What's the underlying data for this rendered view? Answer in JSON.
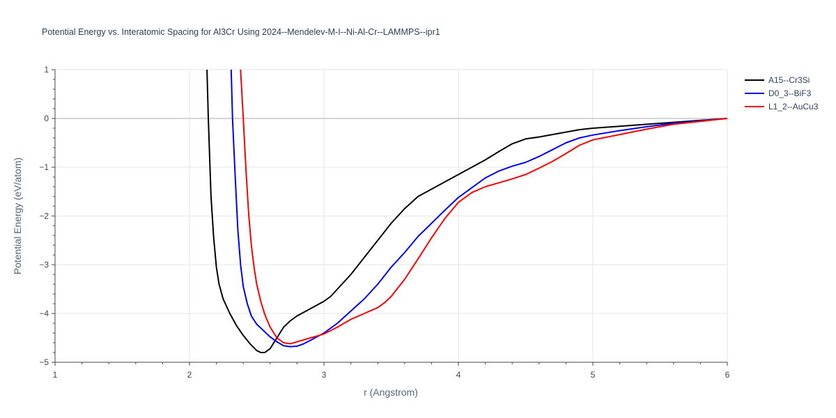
{
  "chart_data": {
    "type": "line",
    "title": "Potential Energy vs. Interatomic Spacing for Al3Cr Using 2024--Mendelev-M-I--Ni-Al-Cr--LAMMPS--ipr1",
    "xlabel": "r (Angstrom)",
    "ylabel": "Potential Energy (eV/atom)",
    "xlim": [
      1,
      6
    ],
    "ylim": [
      -5,
      1
    ],
    "xticks": [
      1,
      2,
      3,
      4,
      5,
      6
    ],
    "xtick_labels": [
      "1",
      "2",
      "3",
      "4",
      "5",
      "6"
    ],
    "yticks": [
      1,
      0,
      -1,
      -2,
      -3,
      -4,
      -5
    ],
    "ytick_labels": [
      "1",
      "0",
      "−1",
      "−2",
      "−3",
      "−4",
      "−5"
    ],
    "grid": true,
    "legend_position": "top-right",
    "series": [
      {
        "name": "A15--Cr3Si",
        "color": "#000000",
        "x": [
          2.13,
          2.14,
          2.16,
          2.18,
          2.2,
          2.22,
          2.25,
          2.3,
          2.35,
          2.4,
          2.45,
          2.5,
          2.53,
          2.56,
          2.6,
          2.65,
          2.7,
          2.75,
          2.8,
          2.9,
          3.0,
          3.05,
          3.1,
          3.2,
          3.3,
          3.4,
          3.5,
          3.6,
          3.7,
          3.8,
          3.9,
          4.0,
          4.1,
          4.2,
          4.3,
          4.4,
          4.5,
          4.6,
          4.7,
          4.8,
          4.9,
          5.0,
          5.2,
          5.4,
          5.6,
          5.8,
          6.0
        ],
        "y": [
          1.0,
          0.0,
          -1.6,
          -2.45,
          -3.05,
          -3.4,
          -3.7,
          -4.0,
          -4.25,
          -4.45,
          -4.62,
          -4.76,
          -4.8,
          -4.8,
          -4.72,
          -4.5,
          -4.28,
          -4.15,
          -4.05,
          -3.9,
          -3.75,
          -3.65,
          -3.5,
          -3.2,
          -2.85,
          -2.5,
          -2.15,
          -1.85,
          -1.6,
          -1.45,
          -1.3,
          -1.15,
          -1.0,
          -0.85,
          -0.68,
          -0.52,
          -0.42,
          -0.38,
          -0.33,
          -0.28,
          -0.23,
          -0.2,
          -0.16,
          -0.12,
          -0.08,
          -0.04,
          0.0
        ]
      },
      {
        "name": "D0_3--BiF3",
        "color": "#0000ff",
        "x": [
          2.31,
          2.32,
          2.34,
          2.36,
          2.38,
          2.4,
          2.43,
          2.46,
          2.5,
          2.55,
          2.6,
          2.65,
          2.7,
          2.75,
          2.8,
          2.85,
          2.9,
          3.0,
          3.1,
          3.2,
          3.3,
          3.4,
          3.5,
          3.6,
          3.7,
          3.8,
          3.9,
          4.0,
          4.1,
          4.2,
          4.3,
          4.4,
          4.5,
          4.6,
          4.7,
          4.8,
          4.9,
          5.0,
          5.2,
          5.4,
          5.6,
          5.8,
          6.0
        ],
        "y": [
          1.0,
          0.0,
          -1.2,
          -2.3,
          -3.0,
          -3.45,
          -3.8,
          -4.05,
          -4.22,
          -4.35,
          -4.48,
          -4.58,
          -4.66,
          -4.68,
          -4.67,
          -4.62,
          -4.55,
          -4.4,
          -4.2,
          -3.95,
          -3.7,
          -3.4,
          -3.05,
          -2.75,
          -2.42,
          -2.15,
          -1.88,
          -1.62,
          -1.42,
          -1.22,
          -1.08,
          -0.98,
          -0.9,
          -0.78,
          -0.64,
          -0.5,
          -0.4,
          -0.34,
          -0.25,
          -0.17,
          -0.1,
          -0.05,
          0.0
        ]
      },
      {
        "name": "L1_2--AuCu3",
        "color": "#ff0000",
        "x": [
          2.38,
          2.39,
          2.4,
          2.42,
          2.44,
          2.46,
          2.48,
          2.5,
          2.53,
          2.56,
          2.6,
          2.65,
          2.7,
          2.75,
          2.8,
          2.9,
          3.0,
          3.1,
          3.2,
          3.3,
          3.4,
          3.45,
          3.5,
          3.6,
          3.7,
          3.8,
          3.9,
          4.0,
          4.1,
          4.2,
          4.3,
          4.4,
          4.5,
          4.6,
          4.7,
          4.8,
          4.9,
          5.0,
          5.2,
          5.4,
          5.6,
          5.8,
          6.0
        ],
        "y": [
          1.0,
          0.5,
          0.0,
          -1.05,
          -1.95,
          -2.6,
          -3.05,
          -3.4,
          -3.75,
          -4.02,
          -4.28,
          -4.5,
          -4.6,
          -4.62,
          -4.58,
          -4.5,
          -4.42,
          -4.28,
          -4.12,
          -4.0,
          -3.88,
          -3.78,
          -3.65,
          -3.3,
          -2.88,
          -2.45,
          -2.05,
          -1.72,
          -1.52,
          -1.4,
          -1.32,
          -1.24,
          -1.15,
          -1.02,
          -0.88,
          -0.72,
          -0.55,
          -0.44,
          -0.33,
          -0.22,
          -0.12,
          -0.06,
          0.0
        ]
      }
    ]
  }
}
